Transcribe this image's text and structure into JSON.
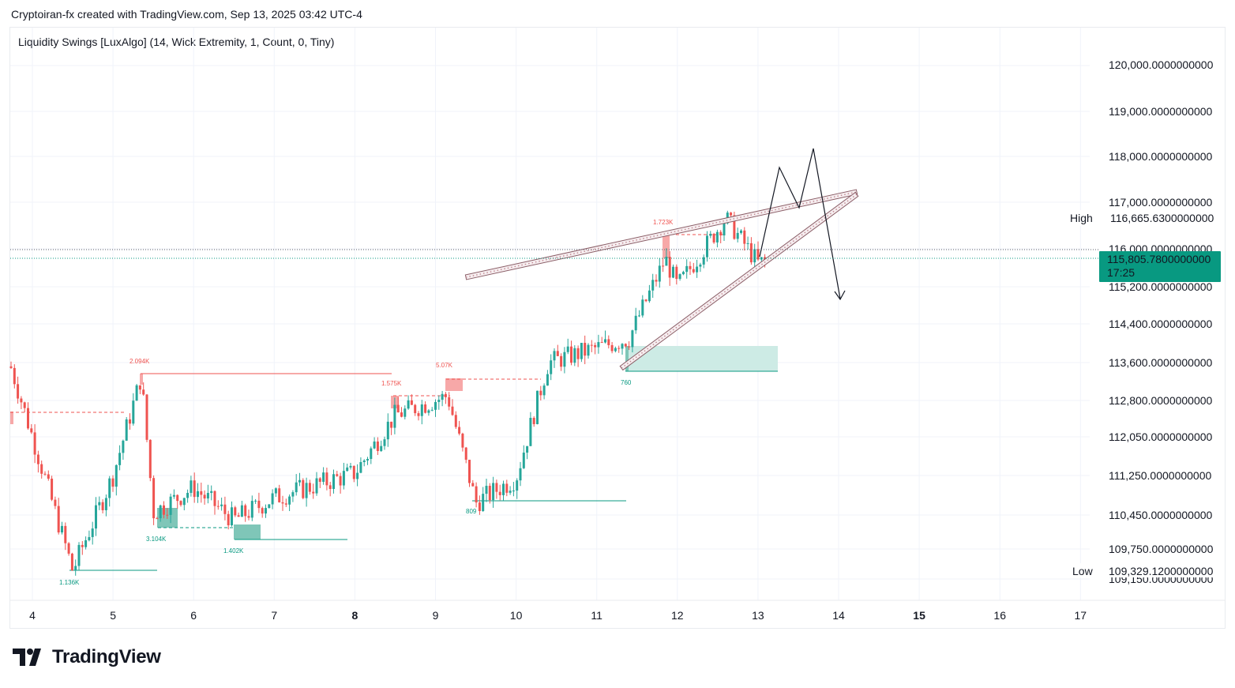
{
  "header": {
    "attribution": "Cryptoiran-fx created with TradingView.com, Sep 13, 2025 03:42 UTC-4"
  },
  "indicator": {
    "label": "Liquidity Swings [LuxAlgo] (14, Wick Extremity, 1, Count, 0, Tiny)"
  },
  "logo": {
    "text": "TradingView"
  },
  "colors": {
    "up": "#26a69a",
    "down": "#ef5350",
    "price_tag": "#089981",
    "wedge": "#b89aa0"
  },
  "price_axis": {
    "ticks": [
      "120,000.0000000000",
      "119,000.0000000000",
      "118,000.0000000000",
      "117,000.0000000000",
      "116,000.0000000000",
      "115,200.0000000000",
      "114,400.0000000000",
      "113,600.0000000000",
      "112,800.0000000000",
      "112,050.0000000000",
      "111,250.0000000000",
      "110,450.0000000000",
      "109,750.0000000000",
      "109,150.0000000000"
    ],
    "high_label": "High",
    "high_value": "116,665.6300000000",
    "low_label": "Low",
    "low_value": "109,329.1200000000",
    "current_price": "115,805.7800000000",
    "countdown": "17:25"
  },
  "time_axis": {
    "ticks": [
      {
        "label": "4",
        "bold": false
      },
      {
        "label": "5",
        "bold": false
      },
      {
        "label": "6",
        "bold": false
      },
      {
        "label": "7",
        "bold": false
      },
      {
        "label": "8",
        "bold": true
      },
      {
        "label": "9",
        "bold": false
      },
      {
        "label": "10",
        "bold": false
      },
      {
        "label": "11",
        "bold": false
      },
      {
        "label": "12",
        "bold": false
      },
      {
        "label": "13",
        "bold": false
      },
      {
        "label": "14",
        "bold": false
      },
      {
        "label": "15",
        "bold": true
      },
      {
        "label": "16",
        "bold": false
      },
      {
        "label": "17",
        "bold": false
      }
    ]
  },
  "chart_data": {
    "type": "line",
    "title": "",
    "y_unit": "price",
    "ylim": [
      109150,
      120000
    ],
    "x": [
      4,
      4.5,
      5,
      5.35,
      5.5,
      6,
      6.5,
      7,
      8,
      8.5,
      9.15,
      9.5,
      10,
      10.4,
      11,
      11.4,
      11.85,
      12,
      12.6,
      13,
      13.3
    ],
    "series": [
      {
        "values": [
          112050,
          109329,
          111250,
          113300,
          110500,
          111000,
          110350,
          110800,
          111300,
          112500,
          112900,
          110700,
          111200,
          113600,
          113900,
          114100,
          115800,
          115200,
          116665,
          115700,
          115805
        ]
      }
    ],
    "liquidity_labels": [
      {
        "text": "2.094K",
        "kind": "high"
      },
      {
        "text": "1.575K",
        "kind": "high"
      },
      {
        "text": "5.07K",
        "kind": "high"
      },
      {
        "text": "1.723K",
        "kind": "high"
      },
      {
        "text": "3.104K",
        "kind": "low"
      },
      {
        "text": "1.402K",
        "kind": "low"
      },
      {
        "text": "1.136K",
        "kind": "low"
      },
      {
        "text": "809",
        "kind": "low"
      },
      {
        "text": "760",
        "kind": "low"
      }
    ],
    "grid": true
  }
}
